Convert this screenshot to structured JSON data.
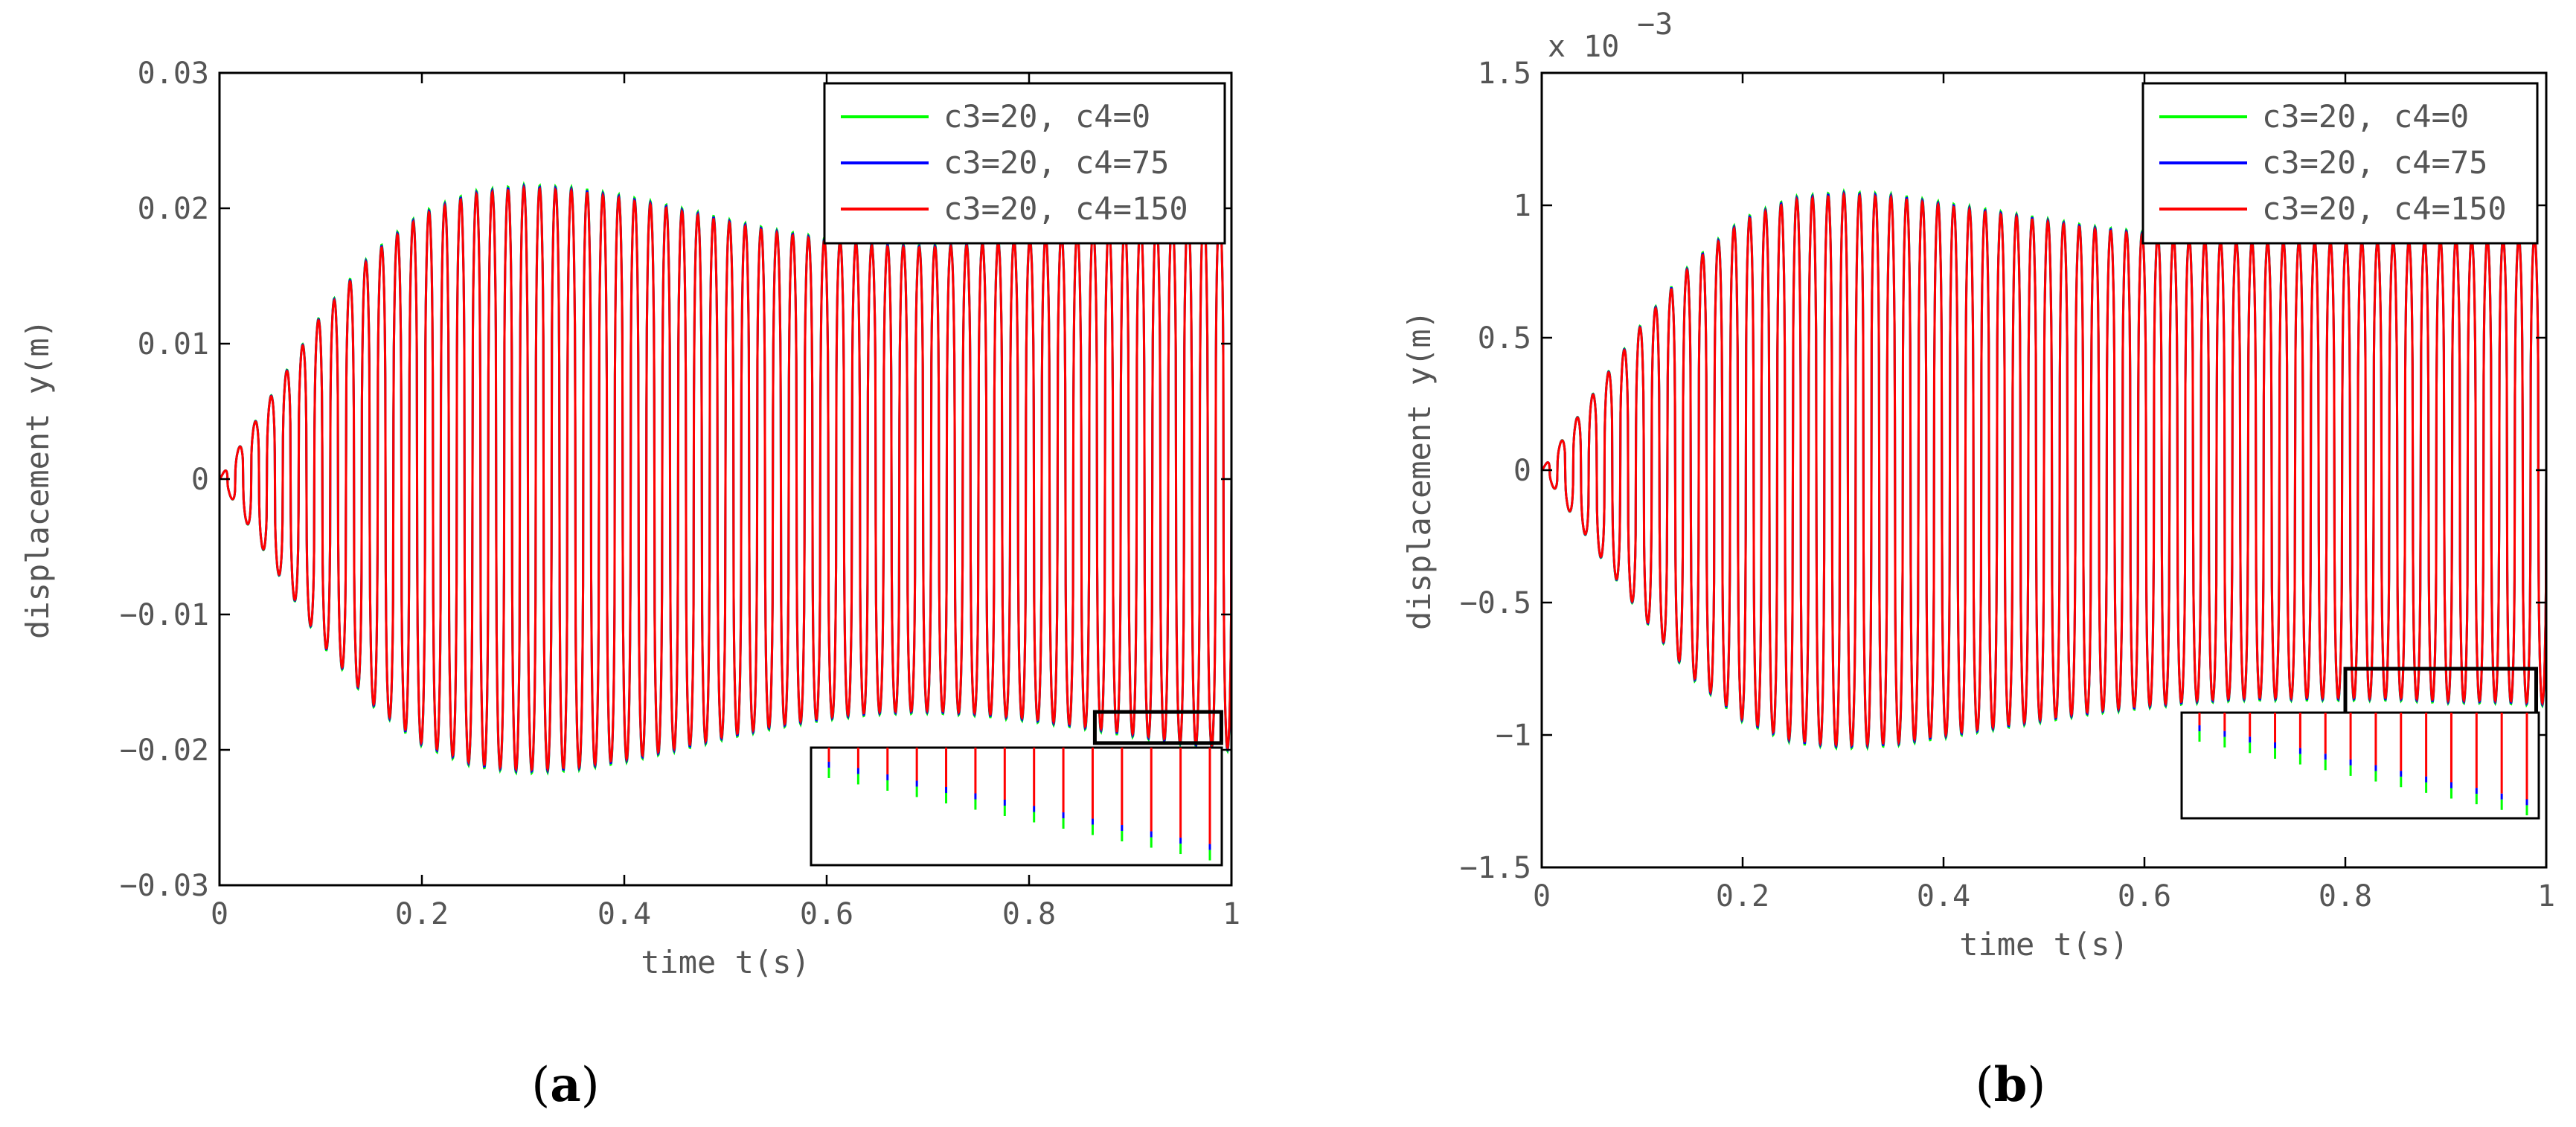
{
  "chart_data": [
    {
      "panel": "(a)",
      "panel_letter": "a",
      "type": "line",
      "xlabel": "time t(s)",
      "ylabel": "displacement y(m)",
      "xlim": [
        0,
        1
      ],
      "ylim": [
        -0.03,
        0.03
      ],
      "x_ticks": [
        0,
        0.2,
        0.4,
        0.6,
        0.8,
        1
      ],
      "x_tick_labels": [
        "0",
        "0.2",
        "0.4",
        "0.6",
        "0.8",
        "1"
      ],
      "y_ticks": [
        0.03,
        0.02,
        0.01,
        0,
        -0.01,
        -0.02,
        -0.03
      ],
      "y_tick_labels": [
        "0.03",
        "0.02",
        "0.01",
        "0",
        "−0.01",
        "−0.02",
        "−0.03"
      ],
      "exponent_label": "",
      "legend_position": "top-right",
      "series": [
        {
          "name": "c3=20, c4=0",
          "color": "#00ff00"
        },
        {
          "name": "c3=20, c4=75",
          "color": "#0000ff"
        },
        {
          "name": "c3=20, c4=150",
          "color": "#ff0000"
        }
      ],
      "envelope": {
        "t": [
          0,
          0.05,
          0.1,
          0.15,
          0.2,
          0.25,
          0.3,
          0.35,
          0.4,
          0.45,
          0.5,
          0.55,
          0.6,
          0.65,
          0.7,
          0.75,
          0.8,
          0.85,
          0.9,
          0.95,
          1.0
        ],
        "amplitude": [
          0,
          0.006,
          0.012,
          0.0165,
          0.0195,
          0.021,
          0.0215,
          0.0213,
          0.0207,
          0.0199,
          0.019,
          0.0182,
          0.0176,
          0.0172,
          0.0171,
          0.0173,
          0.0177,
          0.0182,
          0.0188,
          0.0194,
          0.0199
        ]
      },
      "cycles": 64,
      "zoom_region": {
        "x": [
          0.865,
          0.99
        ],
        "y": [
          -0.0195,
          -0.0172
        ]
      }
    },
    {
      "panel": "(b)",
      "panel_letter": "b",
      "type": "line",
      "xlabel": "time t(s)",
      "ylabel": "displacement y(m)",
      "xlim": [
        0,
        1
      ],
      "ylim": [
        -1.5,
        1.5
      ],
      "x_ticks": [
        0,
        0.2,
        0.4,
        0.6,
        0.8,
        1
      ],
      "x_tick_labels": [
        "0",
        "0.2",
        "0.4",
        "0.6",
        "0.8",
        "1"
      ],
      "y_ticks": [
        1.5,
        1,
        0.5,
        0,
        -0.5,
        -1,
        -1.5
      ],
      "y_tick_labels": [
        "1.5",
        "1",
        "0.5",
        "0",
        "−0.5",
        "−1",
        "−1.5"
      ],
      "exponent_label": "x 10",
      "exponent_power": "−3",
      "legend_position": "top-right",
      "series": [
        {
          "name": "c3=20, c4=0",
          "color": "#00ff00"
        },
        {
          "name": "c3=20, c4=75",
          "color": "#0000ff"
        },
        {
          "name": "c3=20, c4=150",
          "color": "#ff0000"
        }
      ],
      "envelope": {
        "t": [
          0,
          0.05,
          0.1,
          0.15,
          0.2,
          0.25,
          0.3,
          0.35,
          0.4,
          0.45,
          0.5,
          0.55,
          0.6,
          0.65,
          0.7,
          0.75,
          0.8,
          0.85,
          0.9,
          0.95,
          1.0
        ],
        "amplitude": [
          0,
          0.28,
          0.55,
          0.78,
          0.94,
          1.02,
          1.04,
          1.03,
          1.0,
          0.97,
          0.94,
          0.91,
          0.89,
          0.87,
          0.86,
          0.86,
          0.86,
          0.86,
          0.87,
          0.87,
          0.88
        ]
      },
      "cycles": 64,
      "zoom_region": {
        "x": [
          0.8,
          0.99
        ],
        "y": [
          -0.93,
          -0.75
        ]
      }
    }
  ]
}
